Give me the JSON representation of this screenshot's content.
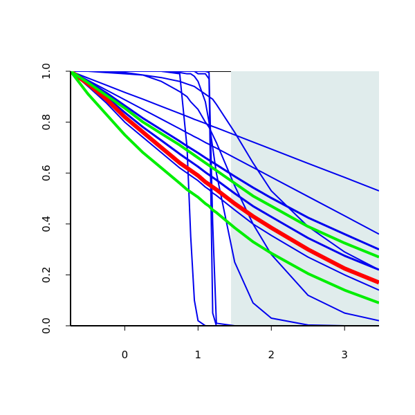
{
  "chart_data": {
    "type": "line",
    "x": [
      -0.74,
      -0.5,
      -0.25,
      0,
      0.25,
      0.5,
      0.75,
      0.85,
      0.9,
      0.95,
      1.0,
      1.1,
      1.15,
      1.2,
      1.25,
      1.5,
      1.75,
      2,
      2.5,
      3,
      3.47
    ],
    "xlim": [
      -0.74,
      3.47
    ],
    "xticks": [
      0,
      1,
      2,
      3
    ],
    "ylim": [
      0,
      1
    ],
    "yticks": [
      {
        "value": 0,
        "label": "0.0"
      },
      {
        "value": 0.2,
        "label": "0.2"
      },
      {
        "value": 0.4,
        "label": "0.4"
      },
      {
        "value": 0.6,
        "label": "0.6"
      },
      {
        "value": 0.8,
        "label": "0.8"
      },
      {
        "value": 1,
        "label": "1.0"
      }
    ],
    "shaded_region": {
      "xlim": [
        1.45,
        3.47
      ],
      "color": "#e0ecec"
    },
    "series": [
      {
        "color": "#0000ee",
        "width": 2,
        "values": [
          1,
          0.973,
          0.945,
          0.917,
          0.89,
          0.862,
          0.834,
          0.823,
          0.817,
          0.811,
          0.806,
          0.795,
          0.789,
          0.783,
          0.778,
          0.75,
          0.722,
          0.694,
          0.638,
          0.583,
          0.53
        ]
      },
      {
        "color": "#0000ee",
        "width": 2,
        "values": [
          1,
          0.964,
          0.926,
          0.888,
          0.85,
          0.812,
          0.774,
          0.758,
          0.751,
          0.743,
          0.736,
          0.72,
          0.713,
          0.705,
          0.698,
          0.66,
          0.622,
          0.584,
          0.508,
          0.432,
          0.36
        ]
      },
      {
        "color": "#0000ee",
        "width": 2,
        "values": [
          1,
          1,
          1,
          1,
          1,
          1,
          0.99,
          0.7,
          0.35,
          0.1,
          0.02,
          0,
          0,
          0,
          0,
          0,
          0,
          0,
          0,
          0,
          0
        ]
      },
      {
        "color": "#0000ee",
        "width": 2,
        "values": [
          1,
          1,
          1,
          1,
          1,
          1,
          1,
          1,
          1,
          1,
          0.99,
          0.99,
          0.97,
          0.05,
          0,
          0,
          0,
          0,
          0,
          0,
          0
        ]
      },
      {
        "color": "#0000ee",
        "width": 2,
        "values": [
          1,
          1,
          1,
          1,
          1,
          1,
          1,
          1,
          1,
          1,
          1,
          1,
          0.995,
          0.4,
          0.01,
          0,
          0,
          0,
          0,
          0,
          0
        ]
      },
      {
        "color": "#0000ee",
        "width": 2,
        "values": [
          1,
          1,
          1,
          1,
          1,
          1,
          0.995,
          0.99,
          0.99,
          0.98,
          0.96,
          0.88,
          0.8,
          0.7,
          0.6,
          0.25,
          0.09,
          0.03,
          0.003,
          0,
          0
        ]
      },
      {
        "color": "#0000ee",
        "width": 2,
        "values": [
          1,
          1,
          1,
          0.995,
          0.985,
          0.96,
          0.92,
          0.9,
          0.88,
          0.865,
          0.85,
          0.8,
          0.78,
          0.75,
          0.72,
          0.55,
          0.4,
          0.28,
          0.12,
          0.05,
          0.02
        ]
      },
      {
        "color": "#0000ee",
        "width": 2,
        "values": [
          1,
          1,
          0.995,
          0.99,
          0.985,
          0.975,
          0.96,
          0.95,
          0.945,
          0.94,
          0.93,
          0.91,
          0.9,
          0.89,
          0.87,
          0.76,
          0.64,
          0.53,
          0.39,
          0.29,
          0.22
        ]
      },
      {
        "color": "#0000ee",
        "width": 3,
        "values": [
          1,
          0.953,
          0.898,
          0.838,
          0.78,
          0.728,
          0.675,
          0.655,
          0.645,
          0.635,
          0.625,
          0.603,
          0.593,
          0.583,
          0.573,
          0.52,
          0.47,
          0.428,
          0.345,
          0.275,
          0.22
        ]
      },
      {
        "color": "#0000ee",
        "width": 3,
        "values": [
          1,
          0.96,
          0.915,
          0.865,
          0.815,
          0.77,
          0.725,
          0.706,
          0.697,
          0.688,
          0.679,
          0.66,
          0.651,
          0.642,
          0.633,
          0.587,
          0.543,
          0.502,
          0.425,
          0.36,
          0.3
        ]
      },
      {
        "color": "#0000ee",
        "width": 2,
        "values": [
          1,
          0.94,
          0.875,
          0.8,
          0.74,
          0.68,
          0.62,
          0.6,
          0.59,
          0.58,
          0.57,
          0.545,
          0.535,
          0.522,
          0.512,
          0.455,
          0.4,
          0.355,
          0.27,
          0.2,
          0.14
        ]
      },
      {
        "color": "#ff0000",
        "width": 6,
        "values": [
          1,
          0.95,
          0.89,
          0.82,
          0.76,
          0.7,
          0.64,
          0.62,
          0.61,
          0.6,
          0.59,
          0.565,
          0.555,
          0.545,
          0.535,
          0.48,
          0.43,
          0.385,
          0.3,
          0.225,
          0.17
        ]
      },
      {
        "color": "#00ee00",
        "width": 4,
        "values": [
          1,
          0.955,
          0.905,
          0.855,
          0.8,
          0.755,
          0.71,
          0.69,
          0.68,
          0.67,
          0.66,
          0.64,
          0.63,
          0.62,
          0.61,
          0.56,
          0.51,
          0.47,
          0.39,
          0.325,
          0.27
        ]
      },
      {
        "color": "#00ee00",
        "width": 4,
        "values": [
          1,
          0.91,
          0.83,
          0.75,
          0.68,
          0.62,
          0.56,
          0.535,
          0.525,
          0.515,
          0.505,
          0.48,
          0.47,
          0.455,
          0.445,
          0.385,
          0.33,
          0.285,
          0.205,
          0.14,
          0.09
        ]
      }
    ]
  }
}
